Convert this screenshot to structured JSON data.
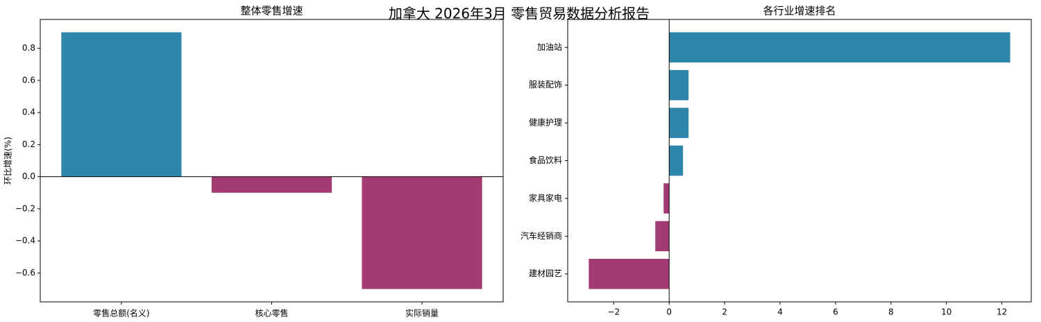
{
  "title": "加拿大 2026年3月 零售贸易数据分析报告",
  "chart_data": [
    {
      "type": "bar",
      "title": "整体零售增速",
      "y_label": "环比增速(%)",
      "categories": [
        "零售总额(名义)",
        "核心零售",
        "实际销量"
      ],
      "values": [
        0.9,
        -0.1,
        -0.7
      ],
      "colors": [
        "#2e86ab",
        "#a23b72",
        "#a23b72"
      ],
      "ylim": [
        -0.78,
        0.98
      ],
      "yticks": [
        {
          "value": -0.6,
          "label": "−0.6"
        },
        {
          "value": -0.4,
          "label": "−0.4"
        },
        {
          "value": -0.2,
          "label": "−0.2"
        },
        {
          "value": 0,
          "label": "0.0"
        },
        0.2,
        0.4,
        0.6,
        0.8
      ]
    },
    {
      "type": "barh",
      "title": "各行业增速排名",
      "categories": [
        "加油站",
        "服装配饰",
        "健康护理",
        "食品饮料",
        "家具家电",
        "汽车经销商",
        "建材园艺"
      ],
      "values": [
        12.3,
        0.7,
        0.7,
        0.5,
        -0.2,
        -0.5,
        -2.9
      ],
      "colors": [
        "#2e86ab",
        "#2e86ab",
        "#2e86ab",
        "#2e86ab",
        "#a23b72",
        "#a23b72",
        "#a23b72"
      ],
      "xlim": [
        -3.66,
        13.06
      ],
      "xticks": [
        {
          "value": -2,
          "label": "−2"
        },
        0,
        2,
        4,
        6,
        8,
        10,
        12
      ]
    }
  ]
}
